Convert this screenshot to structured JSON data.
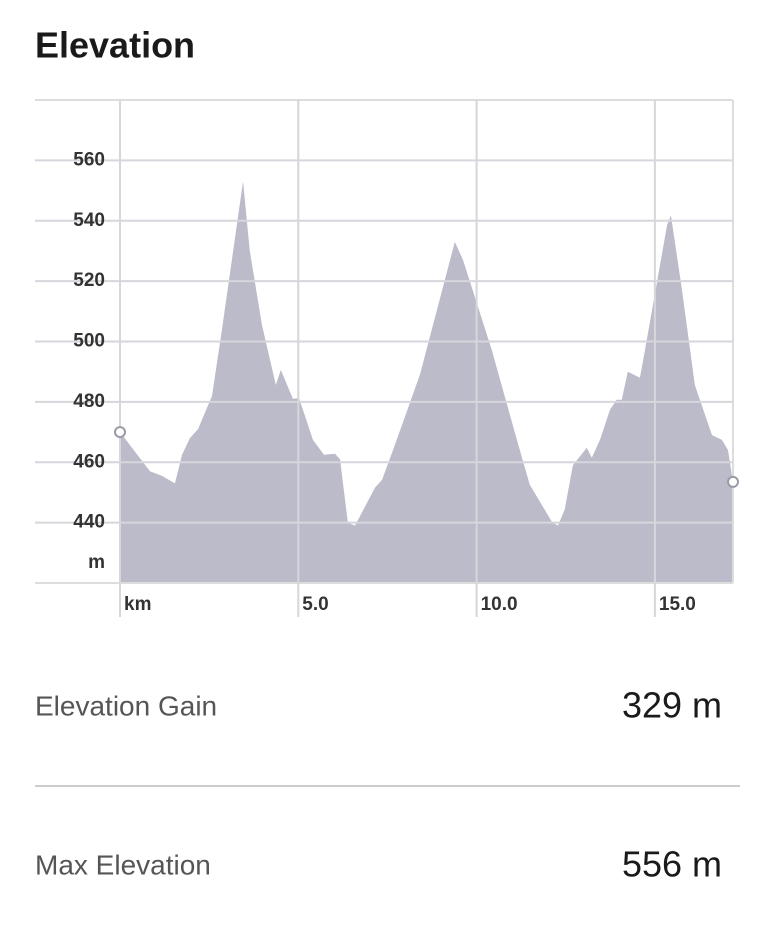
{
  "chart_data": {
    "type": "area",
    "title": "Elevation",
    "y_unit": "m",
    "color": "#bcbbc9",
    "x": [
      0,
      0.84,
      1.18,
      1.54,
      1.74,
      1.96,
      2.19,
      2.58,
      2.86,
      3.45,
      3.64,
      3.98,
      4.37,
      4.51,
      4.85,
      5.02,
      5.41,
      5.72,
      6.03,
      6.17,
      6.39,
      6.59,
      7.15,
      7.35,
      7.71,
      8.41,
      9.39,
      9.62,
      10.43,
      11.13,
      11.49,
      12.11,
      12.28,
      12.47,
      12.7,
      13.09,
      13.23,
      13.46,
      13.74,
      13.93,
      14.07,
      14.24,
      14.58,
      14.72,
      15.34,
      15.45,
      15.76,
      16.12,
      16.6,
      16.88,
      17.05,
      17.19
    ],
    "values": [
      470,
      457,
      455.5,
      453,
      462.5,
      468,
      471,
      482,
      504,
      553,
      530,
      505.5,
      485.6,
      490.6,
      481,
      481.3,
      467.4,
      462.5,
      462.8,
      461,
      440,
      439,
      451.6,
      454.2,
      465.8,
      489,
      533,
      527,
      497,
      467.4,
      452.6,
      440.3,
      439,
      444.3,
      459,
      464.8,
      461.5,
      467.4,
      477.4,
      480.7,
      480.7,
      490,
      488,
      497,
      538.5,
      541.8,
      517,
      485.6,
      469,
      467.4,
      464,
      453.5
    ],
    "xlim": [
      0,
      17.19
    ],
    "ylim": [
      420,
      580
    ],
    "xticks": [
      {
        "value": 0,
        "label": "km"
      },
      {
        "value": 5,
        "label": "5.0"
      },
      {
        "value": 10,
        "label": "10.0"
      },
      {
        "value": 15,
        "label": "15.0"
      }
    ],
    "yticks": [
      440,
      460,
      480,
      500,
      520,
      540,
      560
    ],
    "grid": true
  },
  "stats": [
    {
      "label": "Elevation Gain",
      "value": "329 m"
    },
    {
      "label": "Max Elevation",
      "value": "556 m"
    }
  ]
}
